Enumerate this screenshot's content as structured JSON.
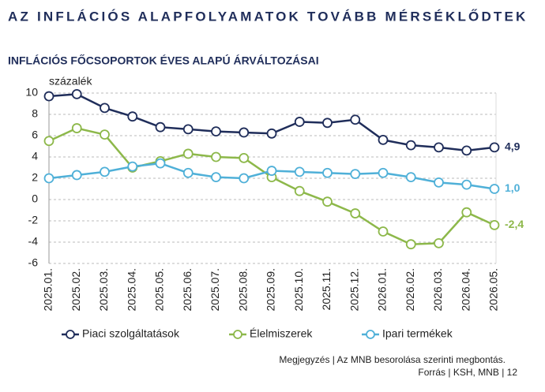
{
  "chart_data": {
    "type": "line",
    "title": "AZ INFLÁCIÓS ALAPFOLYAMATOK TOVÁBB MÉRSÉKLŐDTEK",
    "subtitle": "INFLÁCIÓS FŐCSOPORTOK ÉVES ALAPÚ ÁRVÁLTOZÁSAI",
    "y_label": "százalék",
    "categories": [
      "2025.01.",
      "2025.02.",
      "2025.03.",
      "2025.04.",
      "2025.05.",
      "2025.06.",
      "2025.07.",
      "2025.08.",
      "2025.09.",
      "2025.10.",
      "2025.11.",
      "2025.12.",
      "2026.01.",
      "2026.02.",
      "2026.03.",
      "2026.04.",
      "2026.05."
    ],
    "series": [
      {
        "name": "Piaci szolgáltatások",
        "color": "#1f2d5a",
        "values": [
          9.7,
          9.9,
          8.6,
          7.8,
          6.8,
          6.6,
          6.4,
          6.3,
          6.2,
          7.3,
          7.2,
          7.5,
          5.6,
          5.1,
          4.9,
          4.6,
          4.9
        ],
        "value_labels": [
          null,
          null,
          null,
          null,
          null,
          null,
          null,
          null,
          null,
          null,
          null,
          null,
          null,
          null,
          null,
          null,
          "4,9"
        ]
      },
      {
        "name": "Élelmiszerek",
        "color": "#8db84a",
        "values": [
          5.5,
          6.7,
          6.1,
          3.0,
          3.6,
          4.3,
          4.0,
          3.9,
          2.1,
          0.8,
          -0.2,
          -1.3,
          -3.0,
          -4.2,
          -4.1,
          -1.2,
          -2.4
        ],
        "value_labels": [
          null,
          null,
          null,
          null,
          null,
          null,
          null,
          null,
          null,
          null,
          null,
          null,
          null,
          null,
          null,
          null,
          "-2,4"
        ]
      },
      {
        "name": "Ipari termékek",
        "color": "#4fb0d8",
        "values": [
          2.0,
          2.3,
          2.6,
          3.1,
          3.4,
          2.5,
          2.1,
          2.0,
          2.7,
          2.6,
          2.5,
          2.4,
          2.5,
          2.1,
          1.6,
          1.4,
          1.0
        ],
        "value_labels": [
          null,
          null,
          null,
          null,
          null,
          null,
          null,
          null,
          null,
          null,
          null,
          null,
          null,
          null,
          null,
          null,
          "1,0"
        ]
      }
    ],
    "ylim": [
      -6,
      10
    ],
    "yticks": [
      -6,
      -4,
      -2,
      0,
      2,
      4,
      6,
      8,
      10
    ],
    "grid": true,
    "notes": [
      "Megjegyzés | Az MNB besorolása szerinti megbontás.",
      "Forrás | KSH, MNB | 12"
    ]
  }
}
